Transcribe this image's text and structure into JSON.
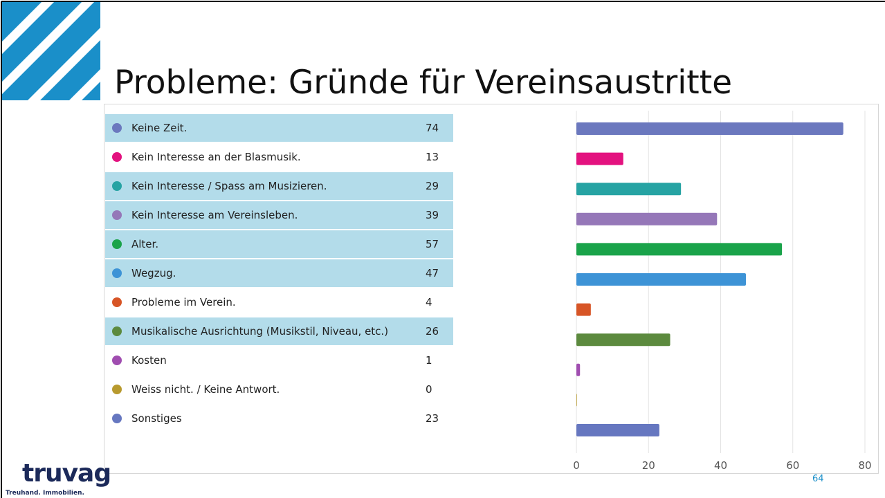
{
  "title": "Probleme: Gründe für Vereinsaustritte",
  "chart_data": {
    "type": "bar",
    "orientation": "horizontal",
    "categories": [
      "Keine Zeit.",
      "Kein Interesse an der Blasmusik.",
      "Kein Interesse / Spass am Musizieren.",
      "Kein Interesse am Vereinsleben.",
      "Alter.",
      "Wegzug.",
      "Probleme im Verein.",
      "Musikalische Ausrichtung (Musikstil, Niveau, etc.)",
      "Kosten",
      "Weiss nicht. / Keine Antwort.",
      "Sonstiges"
    ],
    "values": [
      74,
      13,
      29,
      39,
      57,
      47,
      4,
      26,
      1,
      0,
      23
    ],
    "colors": [
      "#6b78be",
      "#e3127f",
      "#26a3a3",
      "#9577b8",
      "#1aa34a",
      "#3d93d6",
      "#d75526",
      "#5c8a3e",
      "#a04db0",
      "#b89a2e",
      "#6677c0"
    ],
    "xlim": [
      0,
      80
    ],
    "xticks": [
      0,
      20,
      40,
      60,
      80
    ],
    "grid": true
  },
  "page_number": "64",
  "logo": {
    "name": "truvag",
    "tagline": "Treuhand. Immobilien."
  }
}
